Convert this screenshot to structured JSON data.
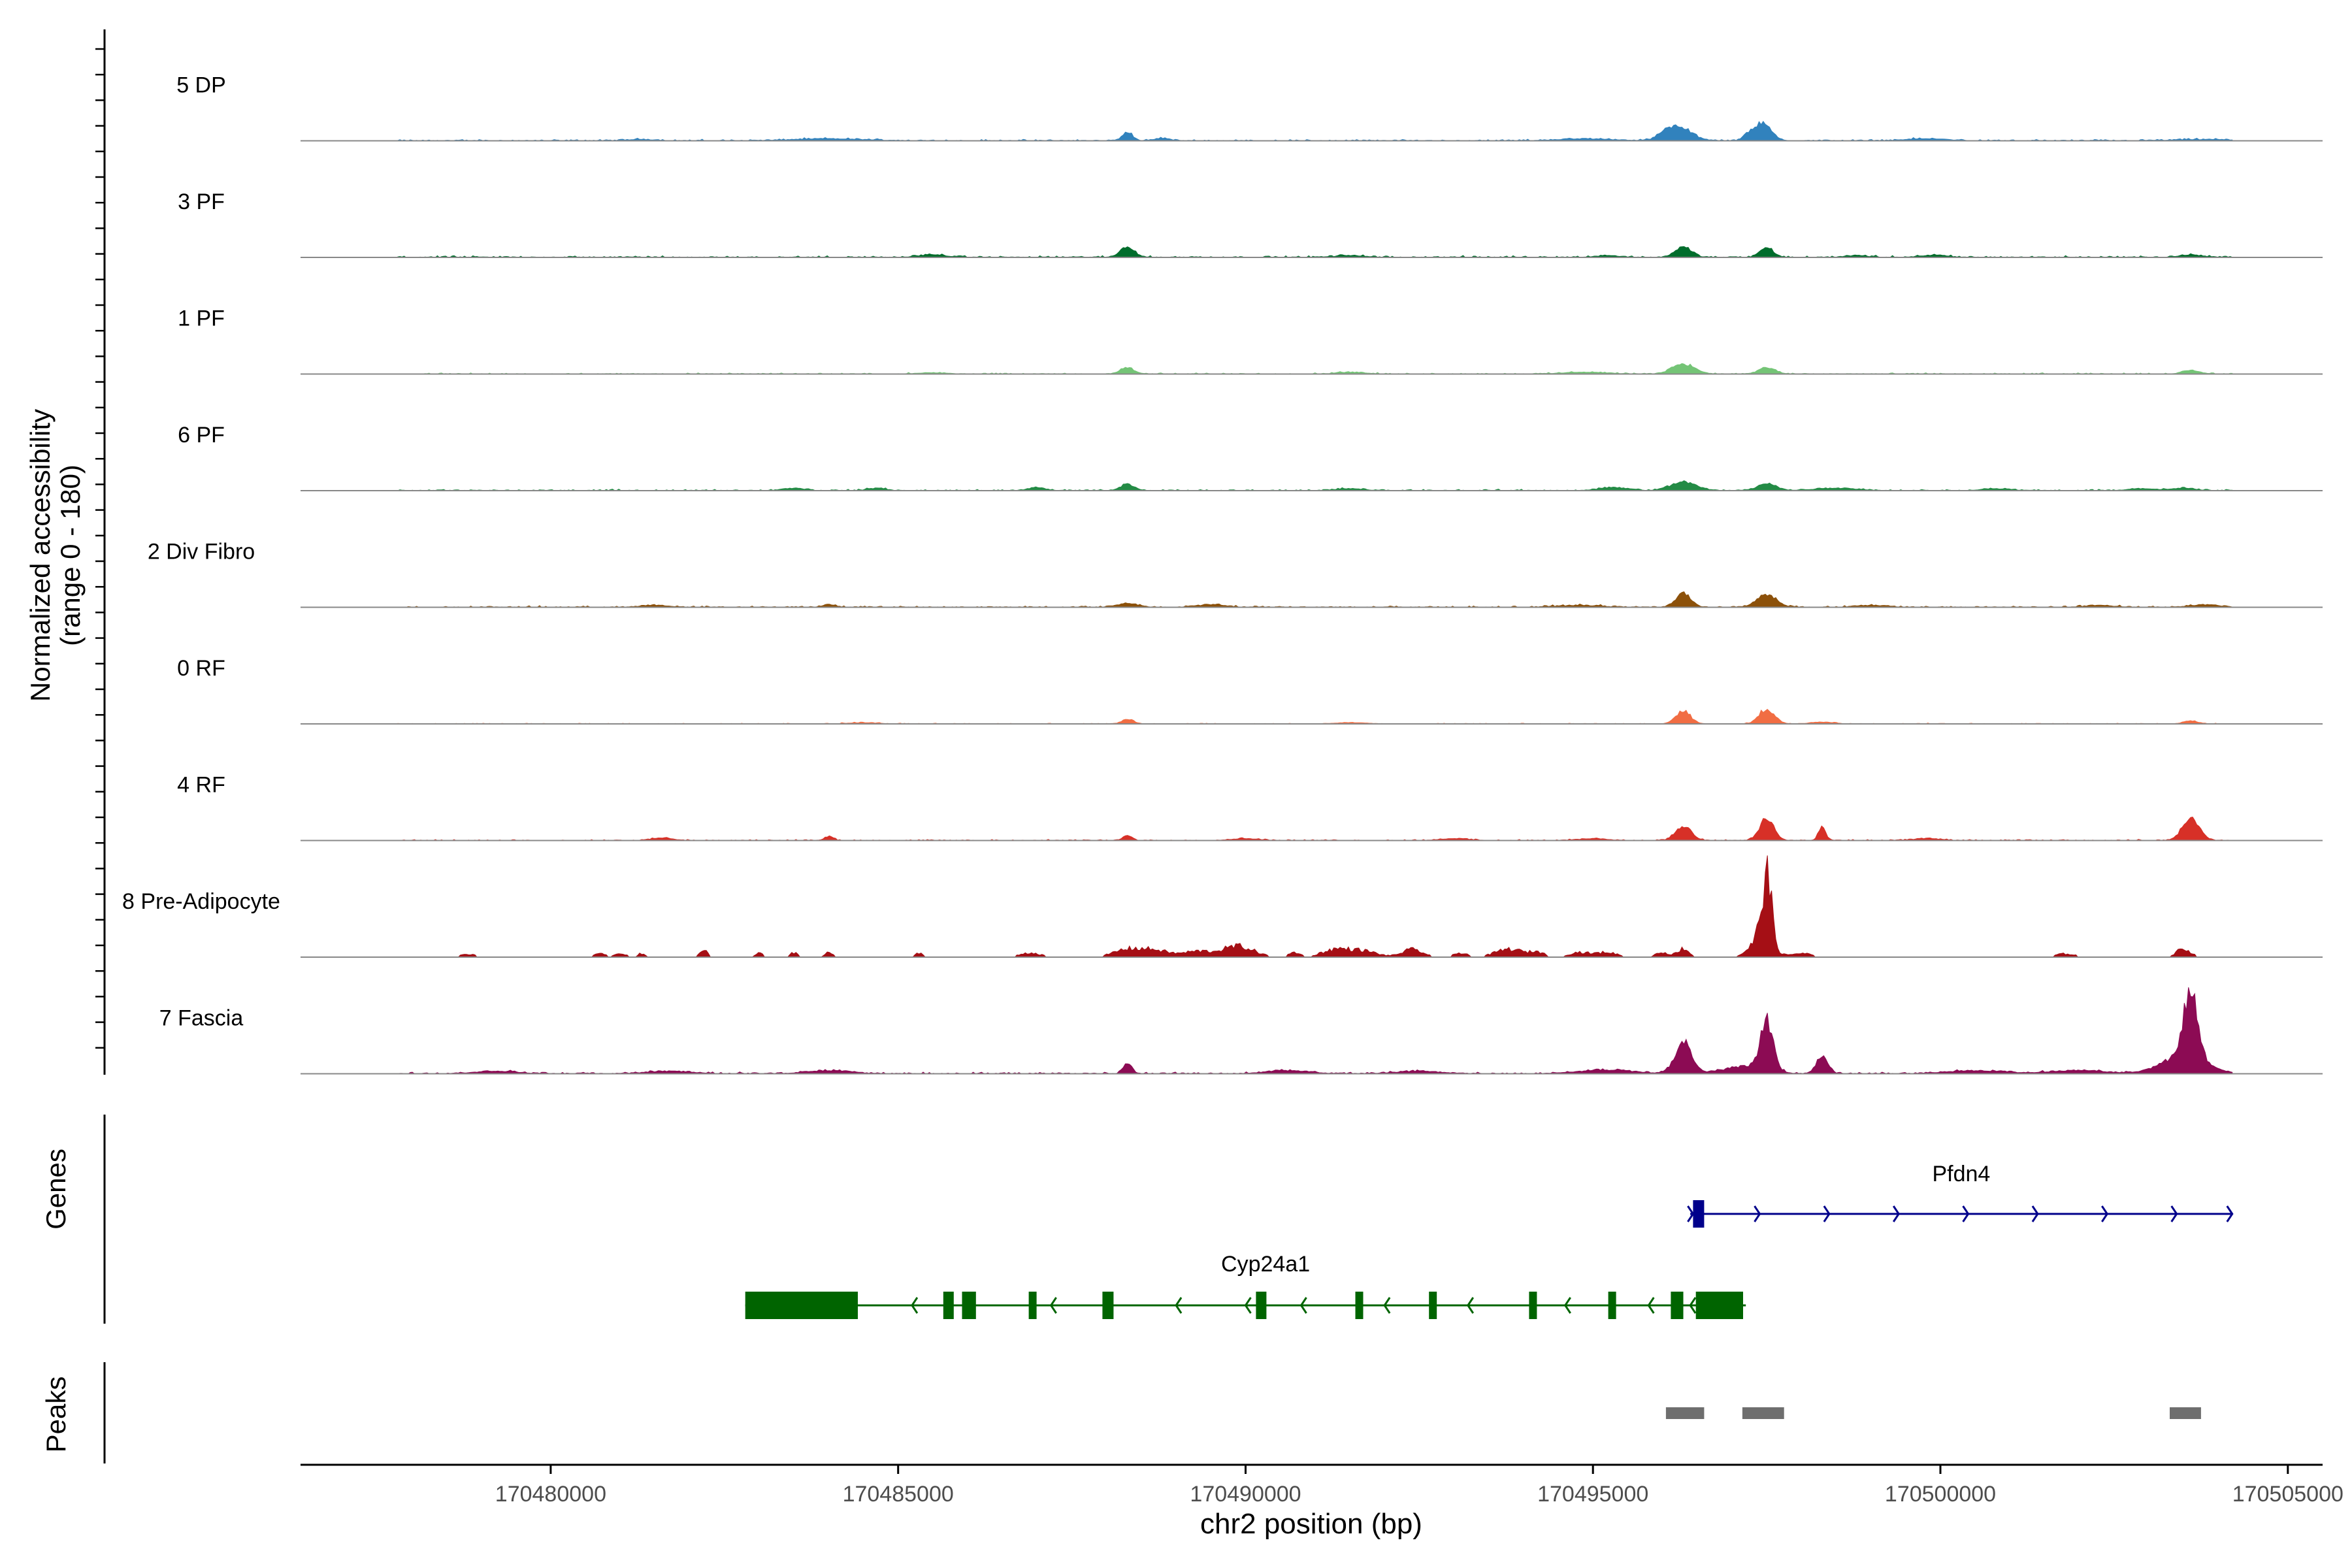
{
  "chart_data": {
    "type": "area",
    "title": "",
    "ylabel": "Normalized accessibility",
    "ylabel_range": "(range 0 - 180)",
    "xlabel": "chr2 position (bp)",
    "x_range": [
      170476400,
      170505500
    ],
    "x_ticks": [
      170480000,
      170485000,
      170490000,
      170495000,
      170500000,
      170505000
    ],
    "x_tick_labels": [
      "170480000",
      "170485000",
      "170490000",
      "170495000",
      "170500000",
      "170505000"
    ],
    "y_range": [
      0,
      180
    ],
    "tracks": [
      {
        "name": "5 DP",
        "color": "#3182bd",
        "peaks": [
          [
            170488300,
            15,
            70
          ],
          [
            170496250,
            20,
            180
          ],
          [
            170496050,
            8,
            120
          ],
          [
            170497450,
            27,
            120
          ],
          [
            170497250,
            10,
            80
          ],
          [
            170488800,
            4,
            100
          ],
          [
            170494900,
            3,
            400
          ],
          [
            170484000,
            3,
            500
          ],
          [
            170499800,
            3,
            300
          ],
          [
            170503800,
            2,
            400
          ],
          [
            170481300,
            2,
            200
          ]
        ],
        "noise": 2.5
      },
      {
        "name": "3 PF",
        "color": "#006d2c",
        "peaks": [
          [
            170488300,
            17,
            100
          ],
          [
            170496300,
            16,
            120
          ],
          [
            170497500,
            15,
            100
          ],
          [
            170503600,
            4,
            150
          ],
          [
            170485500,
            4,
            200
          ],
          [
            170498800,
            3,
            150
          ],
          [
            170491500,
            3,
            200
          ],
          [
            170495200,
            3,
            150
          ],
          [
            170499900,
            3,
            200
          ]
        ],
        "noise": 3.0
      },
      {
        "name": "1 PF",
        "color": "#74c476",
        "peaks": [
          [
            170488300,
            10,
            100
          ],
          [
            170496300,
            17,
            160
          ],
          [
            170497500,
            10,
            120
          ],
          [
            170503600,
            6,
            120
          ],
          [
            170494900,
            3,
            300
          ],
          [
            170491500,
            3,
            200
          ],
          [
            170485500,
            2,
            200
          ]
        ],
        "noise": 2.0
      },
      {
        "name": "6 PF",
        "color": "#238b45",
        "peaks": [
          [
            170488300,
            10,
            100
          ],
          [
            170496300,
            14,
            180
          ],
          [
            170497500,
            12,
            130
          ],
          [
            170487000,
            5,
            120
          ],
          [
            170483500,
            4,
            150
          ],
          [
            170484700,
            4,
            120
          ],
          [
            170495300,
            5,
            200
          ],
          [
            170498500,
            4,
            300
          ],
          [
            170503500,
            4,
            150
          ],
          [
            170491500,
            3,
            200
          ],
          [
            170500800,
            3,
            200
          ],
          [
            170502900,
            3,
            200
          ]
        ],
        "noise": 2.5
      },
      {
        "name": "2 Div Fibro",
        "color": "#8c510a",
        "peaks": [
          [
            170496300,
            22,
            110
          ],
          [
            170497500,
            20,
            140
          ],
          [
            170488300,
            6,
            150
          ],
          [
            170484000,
            5,
            80
          ],
          [
            170489500,
            4,
            200
          ],
          [
            170503800,
            4,
            200
          ],
          [
            170502300,
            3,
            200
          ],
          [
            170499000,
            3,
            200
          ],
          [
            170494800,
            3,
            300
          ],
          [
            170481500,
            3,
            200
          ]
        ],
        "noise": 2.5
      },
      {
        "name": "0 RF",
        "color": "#f16d43",
        "peaks": [
          [
            170496300,
            22,
            100
          ],
          [
            170497500,
            24,
            110
          ],
          [
            170488300,
            8,
            80
          ],
          [
            170503600,
            5,
            100
          ],
          [
            170498300,
            3,
            150
          ],
          [
            170484500,
            2,
            200
          ],
          [
            170491500,
            2,
            200
          ]
        ],
        "noise": 1.3
      },
      {
        "name": "4 RF",
        "color": "#d73027",
        "peaks": [
          [
            170496300,
            24,
            110
          ],
          [
            170497500,
            37,
            100
          ],
          [
            170498300,
            22,
            50
          ],
          [
            170503600,
            36,
            120
          ],
          [
            170488300,
            8,
            60
          ],
          [
            170484000,
            7,
            60
          ],
          [
            170481600,
            4,
            150
          ],
          [
            170490000,
            3,
            200
          ],
          [
            170493000,
            3,
            200
          ],
          [
            170499800,
            3,
            200
          ],
          [
            170495000,
            3,
            200
          ]
        ],
        "noise": 2.0
      },
      {
        "name": "8 Pre-Adipocyte",
        "color": "#a50f15",
        "peaks": [
          [
            170497500,
            140,
            70
          ],
          [
            170497420,
            40,
            150
          ],
          [
            170496300,
            18,
            80
          ],
          [
            170503500,
            18,
            100
          ],
          [
            170482200,
            14,
            60
          ],
          [
            170483500,
            10,
            60
          ],
          [
            170484000,
            10,
            60
          ],
          [
            170480700,
            8,
            80
          ],
          [
            170481000,
            8,
            80
          ],
          [
            170481300,
            7,
            60
          ],
          [
            170483000,
            8,
            60
          ],
          [
            170485300,
            8,
            60
          ],
          [
            170486900,
            9,
            150
          ],
          [
            170488300,
            16,
            200
          ],
          [
            170488700,
            14,
            200
          ],
          [
            170489300,
            12,
            200
          ],
          [
            170489800,
            14,
            200
          ],
          [
            170490000,
            12,
            200
          ],
          [
            170490700,
            10,
            80
          ],
          [
            170491300,
            16,
            200
          ],
          [
            170491700,
            12,
            200
          ],
          [
            170492400,
            16,
            150
          ],
          [
            170493100,
            9,
            100
          ],
          [
            170493800,
            17,
            200
          ],
          [
            170494200,
            10,
            100
          ],
          [
            170494800,
            10,
            150
          ],
          [
            170495200,
            10,
            150
          ],
          [
            170496000,
            10,
            100
          ],
          [
            170498000,
            8,
            150
          ],
          [
            170501800,
            7,
            150
          ],
          [
            170478800,
            6,
            120
          ]
        ],
        "noise": 0
      },
      {
        "name": "7 Fascia",
        "color": "#8c0b54",
        "peaks": [
          [
            170496300,
            50,
            120
          ],
          [
            170497500,
            80,
            90
          ],
          [
            170498300,
            30,
            80
          ],
          [
            170503600,
            110,
            100
          ],
          [
            170503500,
            30,
            300
          ],
          [
            170488300,
            18,
            60
          ],
          [
            170497200,
            12,
            300
          ],
          [
            170495200,
            6,
            400
          ],
          [
            170484000,
            5,
            300
          ],
          [
            170481700,
            4,
            300
          ],
          [
            170490600,
            5,
            300
          ],
          [
            170492500,
            4,
            300
          ],
          [
            170500500,
            5,
            400
          ],
          [
            170502000,
            5,
            400
          ],
          [
            170479200,
            4,
            300
          ]
        ],
        "noise": 3.0
      }
    ],
    "genes": [
      {
        "name": "Pfdn4",
        "strand": "+",
        "color": "#00008b",
        "start": 170496400,
        "end": 170504200,
        "exons": [
          [
            170496440,
            170496600
          ]
        ],
        "arrows": [
          170496440,
          170497400,
          170498400,
          170499400,
          170500400,
          170501400,
          170502400,
          170503400,
          170504200
        ]
      },
      {
        "name": "Cyp24a1",
        "strand": "-",
        "color": "#006400",
        "start": 170482800,
        "end": 170497200,
        "exons": [
          [
            170482800,
            170484420
          ],
          [
            170485650,
            170485800
          ],
          [
            170485920,
            170486120
          ],
          [
            170486880,
            170486960
          ],
          [
            170487940,
            170488100
          ],
          [
            170490150,
            170490300
          ],
          [
            170491580,
            170491680
          ],
          [
            170492640,
            170492720
          ],
          [
            170494080,
            170494160
          ],
          [
            170495220,
            170495300
          ],
          [
            170496120,
            170496300
          ],
          [
            170496480,
            170497160
          ]
        ],
        "arrows": [
          170485200,
          170487200,
          170489000,
          170490000,
          170490800,
          170492000,
          170493200,
          170494600,
          170495800,
          170496400
        ]
      }
    ],
    "peak_regions": [
      [
        170496050,
        170496600
      ],
      [
        170497150,
        170497750
      ],
      [
        170503300,
        170503750
      ]
    ],
    "side_labels": {
      "genes": "Genes",
      "peaks": "Peaks"
    }
  }
}
